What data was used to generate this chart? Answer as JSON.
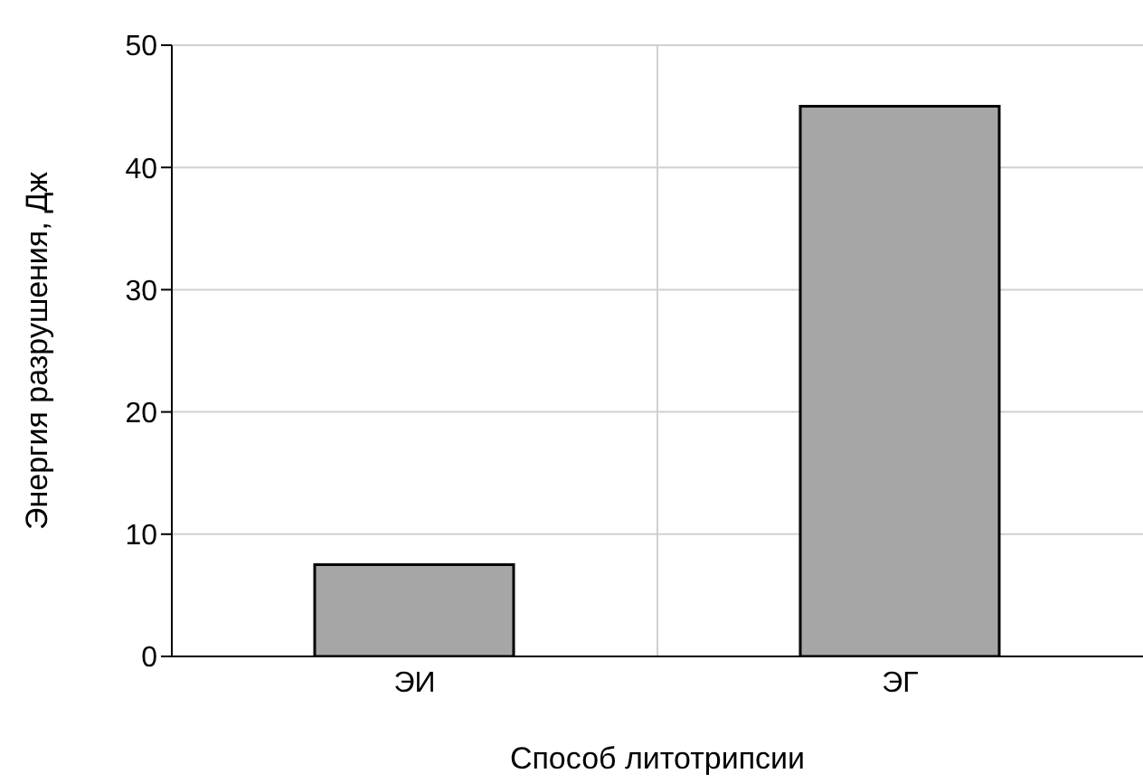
{
  "chart_data": {
    "type": "bar",
    "xlabel": "Способ литотрипсии",
    "ylabel": "Энергия разрушения, Дж",
    "categories": [
      "ЭИ",
      "ЭГ"
    ],
    "values": [
      7.5,
      45
    ],
    "color": "#a6a6a6",
    "ylim": [
      0,
      50
    ],
    "yticks": [
      0,
      10,
      20,
      30,
      40,
      50
    ],
    "grid": true
  }
}
